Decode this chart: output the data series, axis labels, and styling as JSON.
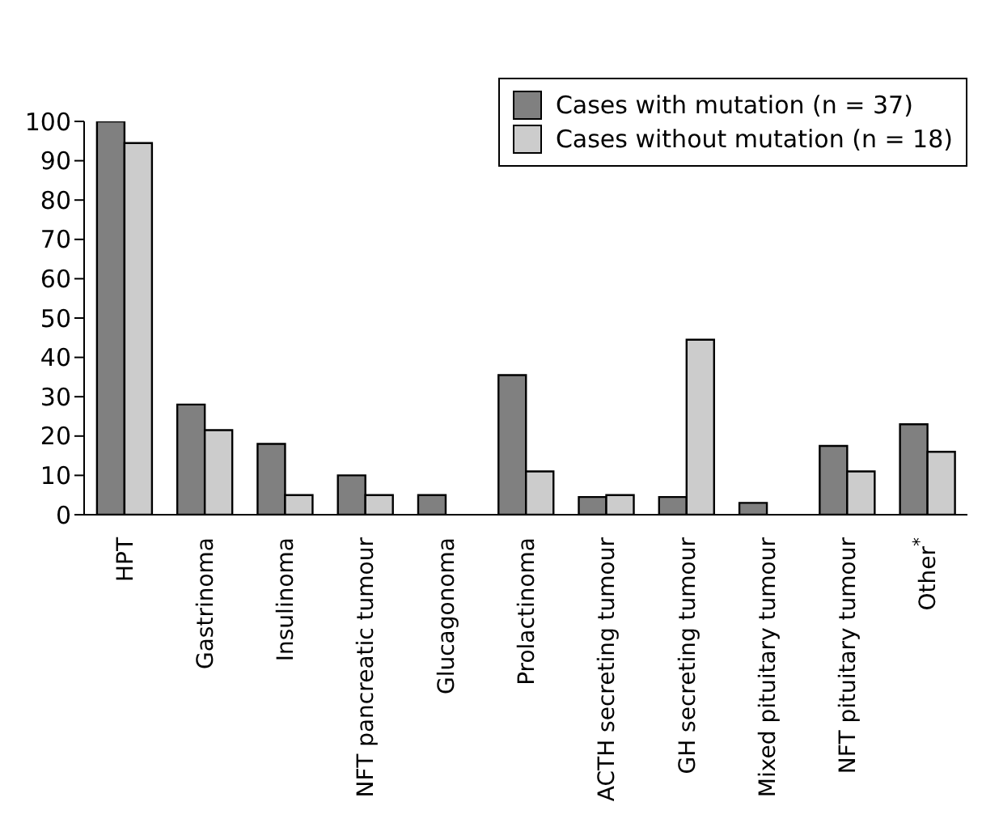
{
  "chart_data": {
    "type": "bar",
    "categories": [
      "HPT",
      "Gastrinoma",
      "Insulinoma",
      "NFT pancreatic tumour",
      "Glucagonoma",
      "Prolactinoma",
      "ACTH secreting tumour",
      "GH secreting tumour",
      "Mixed pituitary tumour",
      "NFT pituitary tumour",
      "Other$^{*}$"
    ],
    "series": [
      {
        "name": "Cases with mutation (n = 37)",
        "color": "#808080",
        "values": [
          100,
          28,
          18,
          10,
          5,
          35.5,
          4.5,
          4.5,
          3,
          17.5,
          23
        ]
      },
      {
        "name": "Cases without mutation (n = 18)",
        "color": "#cccccc",
        "values": [
          94.5,
          21.5,
          5,
          5,
          0,
          11,
          5,
          44.5,
          0,
          11,
          16
        ]
      }
    ],
    "ylim": [
      0,
      100
    ],
    "yticks": [
      0,
      10,
      20,
      30,
      40,
      50,
      60,
      70,
      80,
      90,
      100
    ],
    "legend": "top right"
  }
}
